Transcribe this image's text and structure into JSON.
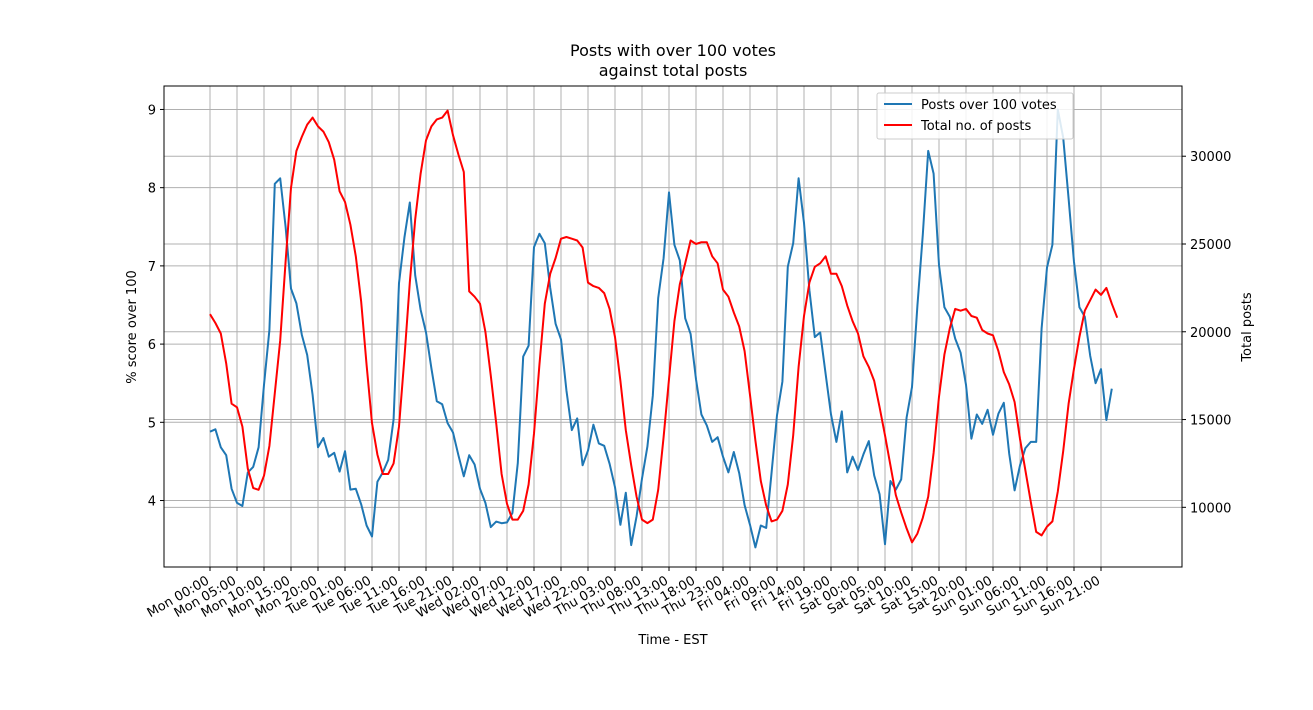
{
  "chart_data": {
    "type": "line",
    "title": "Posts with over 100 votes\nagainst total posts",
    "xlabel": "Time - EST",
    "ylabel_left": "% score over 100",
    "ylabel_right": "Total posts",
    "ylim_left": [
      3.15,
      9.3
    ],
    "ylim_right": [
      6600,
      34000
    ],
    "yticks_left": [
      4,
      5,
      6,
      7,
      8,
      9
    ],
    "yticks_right": [
      10000,
      15000,
      20000,
      25000,
      30000
    ],
    "x_tick_labels": [
      "Mon 00:00",
      "Mon 05:00",
      "Mon 10:00",
      "Mon 15:00",
      "Mon 20:00",
      "Tue 01:00",
      "Tue 06:00",
      "Tue 11:00",
      "Tue 16:00",
      "Tue 21:00",
      "Wed 02:00",
      "Wed 07:00",
      "Wed 12:00",
      "Wed 17:00",
      "Wed 22:00",
      "Thu 03:00",
      "Thu 08:00",
      "Thu 13:00",
      "Thu 18:00",
      "Thu 23:00",
      "Fri 04:00",
      "Fri 09:00",
      "Fri 14:00",
      "Fri 19:00",
      "Sat 00:00",
      "Sat 05:00",
      "Sat 10:00",
      "Sat 15:00",
      "Sat 20:00",
      "Sun 01:00",
      "Sun 06:00",
      "Sun 11:00",
      "Sun 16:00",
      "Sun 21:00"
    ],
    "x_step_hours": 1,
    "grid": true,
    "legend_position": "top-right",
    "series": [
      {
        "name": "Posts over 100 votes",
        "axis": "left",
        "color": "#1f77b4",
        "values": [
          4.88,
          4.91,
          4.68,
          4.58,
          4.15,
          3.97,
          3.93,
          4.36,
          4.43,
          4.68,
          5.48,
          6.18,
          8.05,
          8.12,
          7.5,
          6.71,
          6.52,
          6.12,
          5.86,
          5.35,
          4.68,
          4.8,
          4.56,
          4.61,
          4.37,
          4.63,
          4.14,
          4.15,
          3.95,
          3.68,
          3.54,
          4.24,
          4.36,
          4.52,
          5.04,
          6.78,
          7.36,
          7.81,
          6.88,
          6.44,
          6.15,
          5.69,
          5.27,
          5.23,
          4.99,
          4.87,
          4.58,
          4.31,
          4.58,
          4.46,
          4.15,
          3.97,
          3.66,
          3.73,
          3.71,
          3.72,
          3.84,
          4.48,
          5.84,
          5.98,
          7.24,
          7.41,
          7.29,
          6.72,
          6.26,
          6.06,
          5.41,
          4.9,
          5.05,
          4.45,
          4.64,
          4.97,
          4.73,
          4.7,
          4.47,
          4.17,
          3.69,
          4.1,
          3.43,
          3.8,
          4.28,
          4.69,
          5.34,
          6.59,
          7.1,
          7.94,
          7.27,
          7.07,
          6.33,
          6.13,
          5.55,
          5.1,
          4.96,
          4.75,
          4.81,
          4.56,
          4.36,
          4.62,
          4.35,
          3.94,
          3.69,
          3.4,
          3.68,
          3.65,
          4.36,
          5.09,
          5.52,
          6.99,
          7.29,
          8.12,
          7.55,
          6.69,
          6.09,
          6.15,
          5.62,
          5.1,
          4.75,
          5.14,
          4.36,
          4.56,
          4.39,
          4.59,
          4.76,
          4.32,
          4.08,
          3.44,
          4.25,
          4.14,
          4.27,
          5.06,
          5.45,
          6.49,
          7.4,
          8.47,
          8.18,
          7.01,
          6.47,
          6.35,
          6.07,
          5.89,
          5.48,
          4.79,
          5.1,
          4.98,
          5.16,
          4.84,
          5.11,
          5.25,
          4.6,
          4.13,
          4.45,
          4.67,
          4.75,
          4.75,
          6.2,
          6.98,
          7.27,
          9.0,
          8.64,
          7.86,
          7.05,
          6.47,
          6.35,
          5.85,
          5.5,
          5.68,
          5.03,
          5.43
        ]
      },
      {
        "name": "Total no. of posts",
        "axis": "right",
        "color": "#ff0000",
        "values": [
          21000,
          20500,
          19900,
          18200,
          15900,
          15700,
          14600,
          12200,
          11100,
          11000,
          11800,
          13500,
          16500,
          19500,
          24000,
          28200,
          30300,
          31100,
          31800,
          32200,
          31700,
          31400,
          30800,
          29800,
          28000,
          27400,
          26100,
          24300,
          21700,
          18100,
          14800,
          13000,
          11900,
          11900,
          12500,
          14600,
          18500,
          22800,
          26400,
          29000,
          30900,
          31700,
          32100,
          32200,
          32600,
          31200,
          30100,
          29100,
          22300,
          22000,
          21600,
          20000,
          17500,
          14800,
          11900,
          10200,
          9300,
          9300,
          9800,
          11300,
          14200,
          18100,
          21600,
          23300,
          24200,
          25300,
          25400,
          25300,
          25200,
          24800,
          22800,
          22600,
          22500,
          22200,
          21300,
          19700,
          17200,
          14400,
          12400,
          10600,
          9300,
          9100,
          9300,
          11000,
          14000,
          17300,
          20600,
          22700,
          23900,
          25200,
          25000,
          25100,
          25100,
          24300,
          23900,
          22400,
          22000,
          21100,
          20300,
          18900,
          16400,
          13800,
          11500,
          10100,
          9200,
          9300,
          9800,
          11300,
          14100,
          18000,
          20900,
          22800,
          23700,
          23900,
          24300,
          23300,
          23300,
          22600,
          21500,
          20600,
          19900,
          18600,
          18000,
          17200,
          15700,
          14100,
          12400,
          10700,
          9700,
          8800,
          8000,
          8500,
          9400,
          10600,
          13100,
          16300,
          18700,
          20200,
          21300,
          21200,
          21300,
          20900,
          20800,
          20100,
          19900,
          19800,
          18900,
          17700,
          17000,
          16000,
          13900,
          12100,
          10300,
          8600,
          8400,
          8900,
          9200,
          10900,
          13200,
          15900,
          17900,
          19700,
          21200,
          21800,
          22400,
          22100,
          22500,
          21600,
          20800
        ]
      }
    ]
  }
}
